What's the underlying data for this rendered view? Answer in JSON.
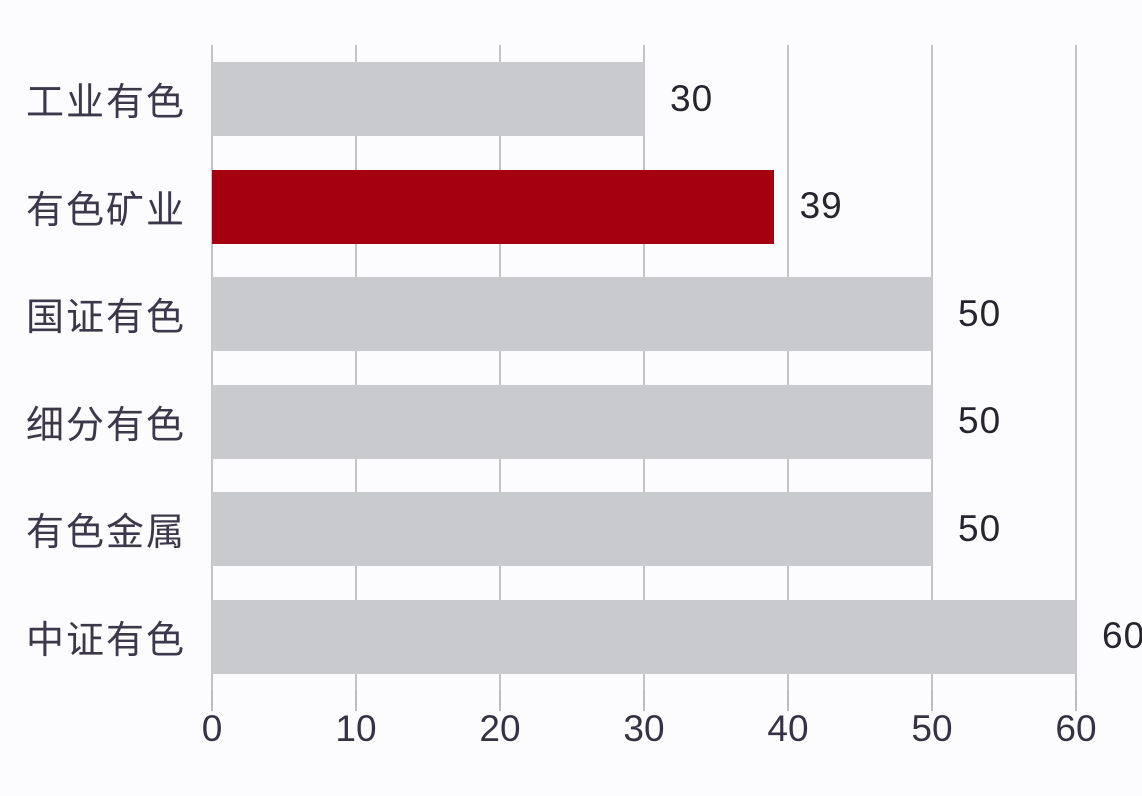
{
  "chart_data": {
    "type": "bar",
    "orientation": "horizontal",
    "title": "",
    "xlabel": "",
    "ylabel": "",
    "categories": [
      "工业有色",
      "有色矿业",
      "国证有色",
      "细分有色",
      "有色金属",
      "中证有色"
    ],
    "values": [
      30,
      39,
      50,
      50,
      50,
      60
    ],
    "value_labels": [
      "30",
      "39",
      "50",
      "50",
      "50",
      "60"
    ],
    "highlight_index": 1,
    "xlim": [
      0,
      60
    ],
    "x_ticks": [
      "0",
      "10",
      "20",
      "30",
      "40",
      "50",
      "60"
    ],
    "grid": true,
    "legend": "none",
    "colors": {
      "bar_default": "#c9cace",
      "bar_highlight": "#a5000f",
      "gridline": "#c3c3c8",
      "background": "#fcfcfe",
      "category_text": "#3c3749",
      "value_text": "#26242e",
      "tick_text": "#363145"
    }
  }
}
